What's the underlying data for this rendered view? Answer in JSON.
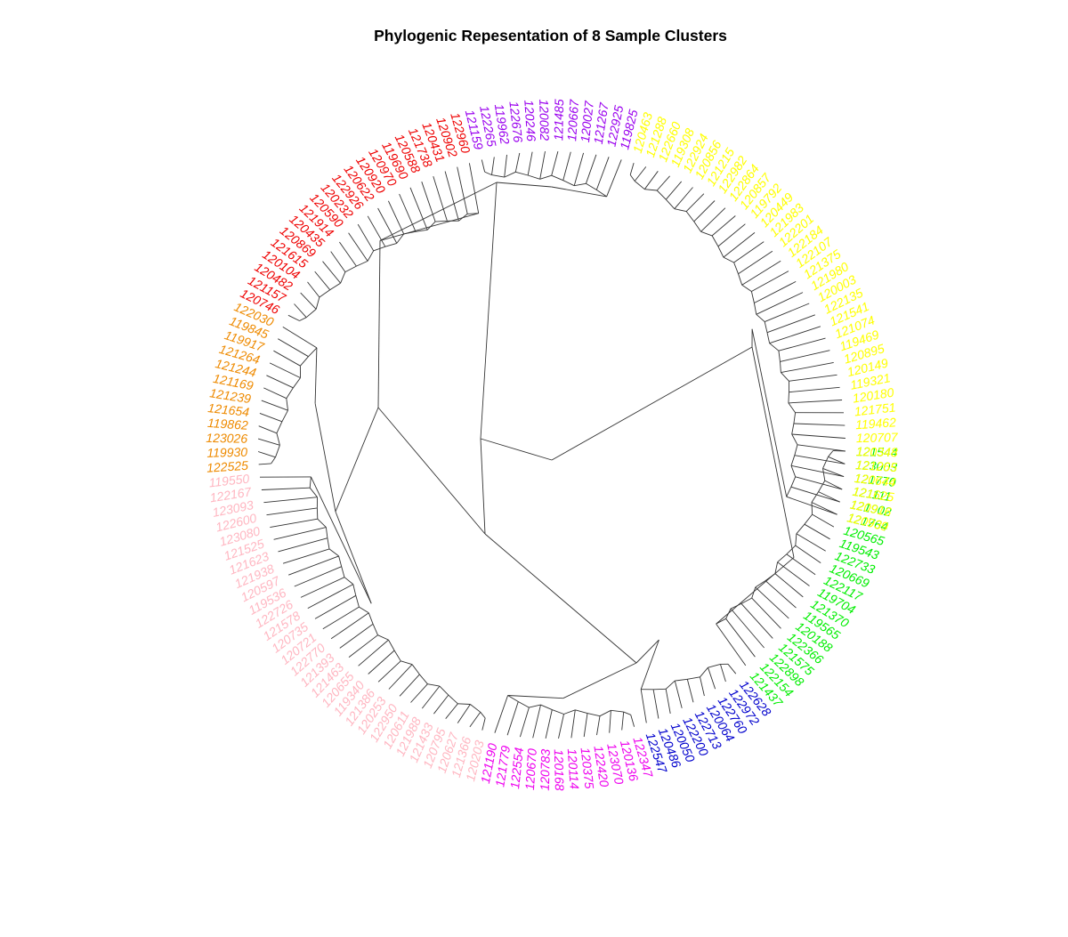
{
  "title": "Phylogenic Repesentation of 8 Sample Clusters",
  "clusters": [
    {
      "name": "green",
      "color": "#00EE00",
      "leaves": [
        "121544",
        "123003",
        "121770",
        "121111",
        "121902",
        "121764",
        "120565",
        "119543",
        "122733",
        "120669",
        "122117",
        "119704",
        "121370",
        "119565",
        "120188",
        "122366",
        "121575",
        "122898",
        "122154",
        "121437"
      ]
    },
    {
      "name": "blue",
      "color": "#0000CD",
      "leaves": [
        "122628",
        "122972",
        "122760",
        "120064",
        "122713",
        "122200",
        "120050",
        "120486",
        "122547"
      ]
    },
    {
      "name": "magenta",
      "color": "#EE00EE",
      "leaves": [
        "122347",
        "120136",
        "123070",
        "122420",
        "120375",
        "120114",
        "120168",
        "120783",
        "120670",
        "122554",
        "121779",
        "121190"
      ]
    },
    {
      "name": "pink",
      "color": "#FFB6C1",
      "leaves": [
        "120203",
        "121366",
        "120627",
        "120795",
        "121433",
        "121988",
        "120611",
        "122950",
        "120253",
        "121386",
        "119340",
        "120655",
        "121463",
        "121393",
        "122770",
        "120721",
        "120735",
        "121578",
        "122726",
        "119536",
        "120597",
        "121938",
        "121623",
        "121525",
        "123080",
        "122600",
        "123093",
        "122167",
        "119550"
      ]
    },
    {
      "name": "orange",
      "color": "#EE8A00",
      "leaves": [
        "122525",
        "119930",
        "123026",
        "119862",
        "121654",
        "121239",
        "121169",
        "121244",
        "121264",
        "119917",
        "119845",
        "122030"
      ]
    },
    {
      "name": "red",
      "color": "#EE0000",
      "leaves": [
        "120746",
        "121157",
        "120482",
        "120104",
        "121615",
        "120869",
        "120435",
        "121914",
        "120590",
        "120232",
        "122926",
        "120622",
        "120920",
        "120970",
        "119690",
        "120588",
        "121738",
        "120431",
        "120902",
        "122960"
      ]
    },
    {
      "name": "purple",
      "color": "#9A00EE",
      "leaves": [
        "121159",
        "122265",
        "119962",
        "122676",
        "120246",
        "120082",
        "121485",
        "120667",
        "120027",
        "121267",
        "122925",
        "119825"
      ]
    },
    {
      "name": "yellow",
      "color": "#FFFF00",
      "leaves": [
        "120463",
        "121288",
        "122660",
        "119308",
        "122924",
        "120856",
        "121215",
        "122982",
        "122864",
        "120857",
        "119792",
        "120449",
        "121983",
        "122201",
        "122184",
        "122107",
        "121375",
        "121980",
        "120003",
        "122135",
        "121541",
        "121074",
        "119469",
        "120895",
        "120149",
        "119321",
        "120180",
        "121751",
        "119462",
        "120707",
        "120348",
        "121265",
        "120644",
        "121625",
        "120916",
        "120939"
      ]
    }
  ]
}
